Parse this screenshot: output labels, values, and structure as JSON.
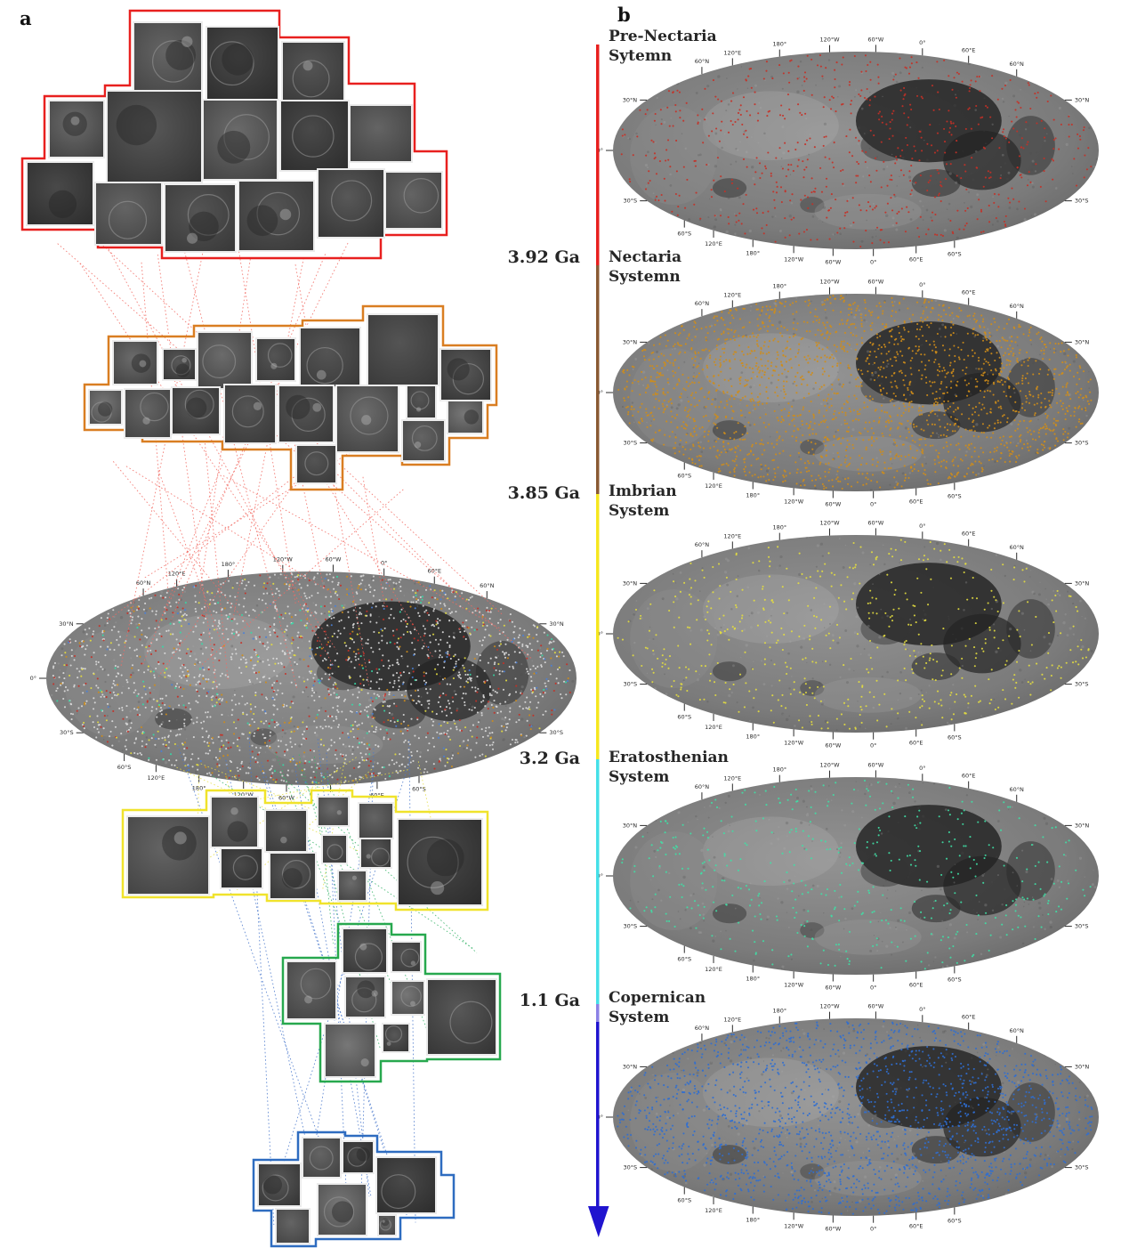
{
  "figure": {
    "panel_a_label": "a",
    "panel_b_label": "b"
  },
  "timeline": {
    "ages": [
      {
        "label": "3.92 Ga"
      },
      {
        "label": "3.85 Ga"
      },
      {
        "label": "3.2 Ga"
      },
      {
        "label": "1.1 Ga"
      }
    ],
    "segment_colors": {
      "pre_nectarian": "#e8201f",
      "nectarian": "#8a5a33",
      "imbrian": "#f6e71f",
      "eratosthenian": "#45e0e8",
      "copernican_transition": "#8c82e6",
      "copernican": "#2014cf"
    },
    "arrow_color": "#2014cf"
  },
  "systems": [
    {
      "line1": "Pre-Nectaria",
      "line2": "Sytemn",
      "dot_color": "#c53026",
      "dot_count": 650,
      "density": "medium"
    },
    {
      "line1": "Nectaria",
      "line2": "Systemn",
      "dot_color": "#cf8d1a",
      "dot_count": 2200,
      "density": "dense"
    },
    {
      "line1": "Imbrian",
      "line2": "System",
      "dot_color": "#e3dd3f",
      "dot_count": 520,
      "density": "sparse"
    },
    {
      "line1": "Eratosthenian",
      "line2": "System",
      "dot_color": "#3fdfa5",
      "dot_count": 440,
      "density": "sparse"
    },
    {
      "line1": "Copernican",
      "line2": "System",
      "dot_color": "#2f6ed2",
      "dot_count": 1900,
      "density": "dense"
    }
  ],
  "map_axis": {
    "top_ticks": [
      "60°N",
      "120°E",
      "180°",
      "120°W",
      "60°W",
      "0°",
      "60°E",
      "60°N"
    ],
    "bottom_ticks": [
      "60°S",
      "120°E",
      "180°",
      "120°W",
      "60°W",
      "0°",
      "60°E",
      "60°S"
    ],
    "left_ticks": [
      "30°N",
      "0°",
      "30°S"
    ],
    "right_ticks": [
      "30°N",
      "30°S"
    ]
  },
  "panel_a": {
    "clusters": [
      {
        "id": "pre-nectarian-crater-montage",
        "outline_color": "#e8201f",
        "thumb_count": 14
      },
      {
        "id": "nectarian-crater-montage",
        "outline_color": "#d97e22",
        "thumb_count": 17
      },
      {
        "id": "imbrian-crater-montage",
        "outline_color": "#f0e32c",
        "thumb_count": 11
      },
      {
        "id": "eratosthenian-crater-montage",
        "outline_color": "#27a84e",
        "thumb_count": 8
      },
      {
        "id": "copernican-crater-montage",
        "outline_color": "#2e6cc0",
        "thumb_count": 7
      }
    ],
    "combined_map_dots": [
      {
        "color": "#dcdcdc",
        "count": 1550
      },
      {
        "color": "#c53026",
        "count": 270
      },
      {
        "color": "#e3dd3f",
        "count": 180
      },
      {
        "color": "#cf8d1a",
        "count": 150
      },
      {
        "color": "#35d9a6",
        "count": 95
      },
      {
        "color": "#4a7fd6",
        "count": 85
      }
    ],
    "connector_colors": {
      "red": "#f26b63",
      "yellow": "#e7df4a",
      "green": "#39b46a",
      "blue": "#4a78cc"
    }
  }
}
